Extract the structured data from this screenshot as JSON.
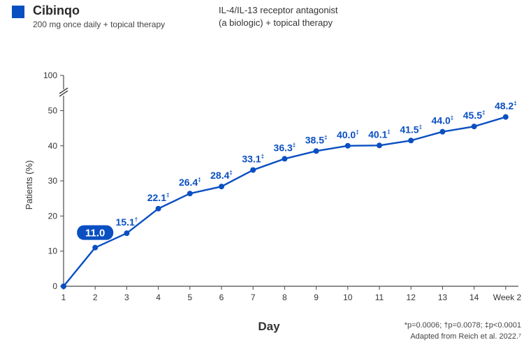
{
  "legend": {
    "swatch_color": "#0a4fc2",
    "series_title": "Cibinqo",
    "series_subtitle": "200 mg once daily + topical therapy",
    "comparator_line1": "IL-4/IL-13 receptor antagonist",
    "comparator_line2": "(a biologic) + topical therapy"
  },
  "footnotes": {
    "significance": "*p=0.0006; †p=0.0078; ‡p<0.0001",
    "source": "Adapted from Reich et al. 2022.⁷"
  },
  "chart_data": {
    "type": "line",
    "title": "",
    "xlabel": "Day",
    "ylabel": "Patients (%)",
    "x": [
      "1",
      "2",
      "3",
      "4",
      "5",
      "6",
      "7",
      "8",
      "9",
      "10",
      "11",
      "12",
      "13",
      "14",
      "Week 2"
    ],
    "series": [
      {
        "name": "Cibinqo",
        "color": "#0a4fc2",
        "values": [
          0,
          11.0,
          15.1,
          22.1,
          26.4,
          28.4,
          33.1,
          36.3,
          38.5,
          40.0,
          40.1,
          41.5,
          44.0,
          45.5,
          48.2
        ],
        "labels": [
          "",
          "11.0",
          "15.1",
          "22.1",
          "26.4",
          "28.4",
          "33.1",
          "36.3",
          "38.5",
          "40.0",
          "40.1",
          "41.5",
          "44.0",
          "45.5",
          "48.2"
        ],
        "label_marks": [
          "",
          "",
          "†",
          "‡",
          "‡",
          "‡",
          "‡",
          "‡",
          "‡",
          "‡",
          "‡",
          "‡",
          "‡",
          "‡",
          "‡"
        ],
        "highlight_index": 1
      }
    ],
    "yticks": [
      "0",
      "10",
      "20",
      "30",
      "40",
      "50",
      "100"
    ],
    "ylim": [
      0,
      100
    ],
    "axis_break": true,
    "grid": false
  }
}
